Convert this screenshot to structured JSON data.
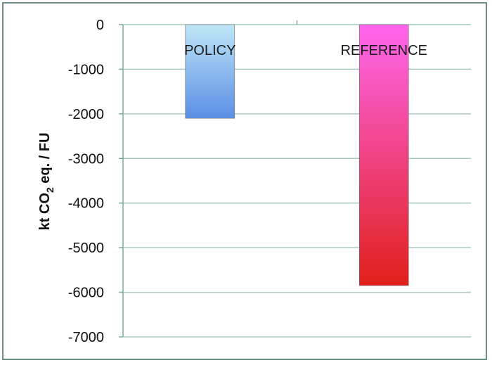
{
  "chart_data": {
    "type": "bar",
    "categories": [
      "POLICY",
      "REFERENCE"
    ],
    "values": [
      -2100,
      -5850
    ],
    "ylabel": {
      "prefix": "kt CO",
      "subscript": "2",
      "suffix": " eq. / FU"
    },
    "ylim": [
      -7000,
      0
    ],
    "yticks": [
      0,
      -1000,
      -2000,
      -3000,
      -4000,
      -5000,
      -6000,
      -7000
    ],
    "grid": true,
    "colors": {
      "POLICY": [
        "#bfe6f6",
        "#5b8fe6"
      ],
      "REFERENCE": [
        "#ff66ee",
        "#e0201a"
      ],
      "gridline": "#a9c9c0",
      "axis": "#7fa89c"
    }
  }
}
